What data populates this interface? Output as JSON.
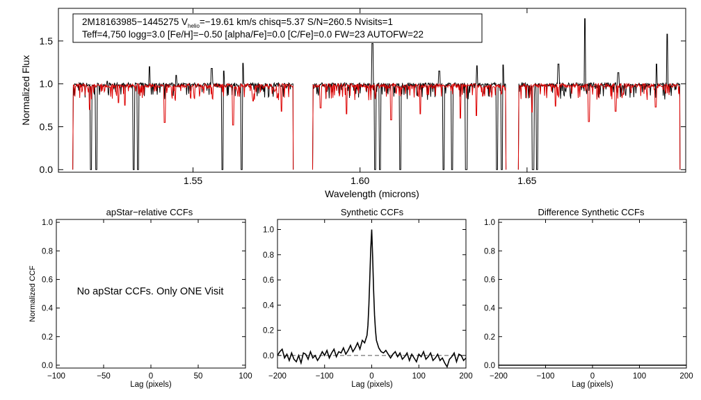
{
  "chart_data": [
    {
      "type": "line",
      "panel": "spectrum",
      "xlabel": "Wavelength (microns)",
      "ylabel": "Normalized Flux",
      "xlim": [
        1.5097,
        1.6975
      ],
      "ylim": [
        -0.03,
        1.88
      ],
      "xticks": [
        1.55,
        1.6,
        1.65
      ],
      "xtick_labels": [
        "1.55",
        "1.60",
        "1.65"
      ],
      "yticks": [
        0.0,
        0.5,
        1.0,
        1.5
      ],
      "ytick_labels": [
        "0.0",
        "0.5",
        "1.0",
        "1.5"
      ],
      "info_box": {
        "line1": "2M18163985−1445275  V",
        "line1_sub": "helio",
        "line1_rest": "=−19.61 km/s  chisq=5.37  S/N=260.5  Nvisits=1",
        "line2": "Teff=4,750 logg=3.0 [Fe/H]=−0.50 [alpha/Fe]=0.0 [C/Fe]=0.0 FW=23 AUTOFW=22"
      },
      "series": [
        {
          "color": "#000000",
          "continuum": 0.99,
          "chips": [
            [
              1.514,
              1.58
            ],
            [
              1.5858,
              1.6437
            ],
            [
              1.6474,
              1.6958
            ]
          ],
          "emission": [
            [
              1.5243,
              1.03
            ],
            [
              1.537,
              1.2
            ],
            [
              1.545,
              1.1
            ],
            [
              1.5556,
              1.18
            ],
            [
              1.5592,
              1.15
            ],
            [
              1.565,
              1.24
            ],
            [
              1.6037,
              1.47
            ],
            [
              1.6237,
              1.15
            ],
            [
              1.635,
              1.21
            ],
            [
              1.6428,
              1.22
            ],
            [
              1.6594,
              1.23
            ],
            [
              1.6673,
              1.76
            ],
            [
              1.6773,
              1.13
            ],
            [
              1.6888,
              1.23
            ],
            [
              1.692,
              1.58
            ]
          ],
          "deep_lines": [
            [
              1.5195,
              0.0
            ],
            [
              1.521,
              0.0
            ],
            [
              1.5323,
              0.0
            ],
            [
              1.5335,
              0.0
            ],
            [
              1.5588,
              0.0
            ],
            [
              1.5645,
              0.0
            ],
            [
              1.6045,
              0.0
            ],
            [
              1.606,
              0.0
            ],
            [
              1.612,
              0.0
            ],
            [
              1.625,
              0.0
            ],
            [
              1.6275,
              0.0
            ],
            [
              1.6318,
              0.0
            ],
            [
              1.641,
              0.0
            ],
            [
              1.6425,
              0.0
            ],
            [
              1.6518,
              0.0
            ],
            [
              1.653,
              0.0
            ]
          ]
        },
        {
          "color": "#dd0000",
          "continuum": 0.98,
          "chips": [
            [
              1.514,
              1.58
            ],
            [
              1.5858,
              1.6437
            ],
            [
              1.6474,
              1.6958
            ]
          ],
          "absorption": [
            [
              1.519,
              0.7
            ],
            [
              1.5277,
              0.78
            ],
            [
              1.5296,
              0.75
            ],
            [
              1.5415,
              0.55
            ],
            [
              1.562,
              0.52
            ],
            [
              1.568,
              0.8
            ],
            [
              1.5765,
              0.68
            ],
            [
              1.5882,
              0.72
            ],
            [
              1.596,
              0.65
            ],
            [
              1.6093,
              0.58
            ],
            [
              1.618,
              0.65
            ],
            [
              1.63,
              0.6
            ],
            [
              1.6348,
              0.63
            ],
            [
              1.6515,
              0.67
            ],
            [
              1.6585,
              0.74
            ],
            [
              1.6685,
              0.56
            ],
            [
              1.6765,
              0.68
            ],
            [
              1.6885,
              0.73
            ]
          ]
        }
      ]
    },
    {
      "type": "line",
      "panel": "apstar-ccf",
      "title": "apStar−relative CCFs",
      "xlabel": "Lag (pixels)",
      "ylabel": "Normalized CCF",
      "xlim": [
        -100,
        100
      ],
      "ylim": [
        -0.02,
        1.02
      ],
      "xticks": [
        -100,
        -50,
        0,
        50,
        100
      ],
      "xtick_labels": [
        "−100",
        "−50",
        "0",
        "50",
        "100"
      ],
      "yticks": [
        0.0,
        0.2,
        0.4,
        0.6,
        0.8,
        1.0
      ],
      "ytick_labels": [
        "0.0",
        "0.2",
        "0.4",
        "0.6",
        "0.8",
        "1.0"
      ],
      "annotation": "No apStar CCFs.  Only ONE Visit",
      "series": []
    },
    {
      "type": "line",
      "panel": "synthetic-ccf",
      "title": "Synthetic CCFs",
      "xlabel": "Lag (pixels)",
      "xlim": [
        -200,
        200
      ],
      "ylim": [
        -0.1,
        1.08
      ],
      "xticks": [
        -200,
        -100,
        0,
        100,
        200
      ],
      "xtick_labels": [
        "−200",
        "−100",
        "0",
        "100",
        "200"
      ],
      "yticks": [
        0.0,
        0.2,
        0.4,
        0.6,
        0.8,
        1.0
      ],
      "ytick_labels": [
        "0.0",
        "0.2",
        "0.4",
        "0.6",
        "0.8",
        "1.0"
      ],
      "zero_line": 0.0,
      "series": [
        {
          "color": "#000000",
          "x": [
            -200,
            -195,
            -190,
            -185,
            -180,
            -175,
            -170,
            -165,
            -160,
            -155,
            -150,
            -145,
            -140,
            -135,
            -130,
            -125,
            -120,
            -115,
            -110,
            -105,
            -100,
            -95,
            -90,
            -85,
            -80,
            -75,
            -70,
            -65,
            -60,
            -55,
            -50,
            -45,
            -40,
            -35,
            -30,
            -25,
            -20,
            -15,
            -10,
            -8,
            -6,
            -4,
            -2,
            0,
            2,
            4,
            6,
            8,
            10,
            15,
            20,
            25,
            30,
            35,
            40,
            45,
            50,
            55,
            60,
            65,
            70,
            75,
            80,
            85,
            90,
            95,
            100,
            105,
            110,
            115,
            120,
            125,
            130,
            135,
            140,
            145,
            150,
            155,
            160,
            165,
            170,
            175,
            180,
            185,
            190,
            195,
            200
          ],
          "y": [
            0.0,
            0.03,
            0.05,
            -0.02,
            0.01,
            -0.04,
            0.02,
            -0.03,
            -0.05,
            0.0,
            -0.06,
            0.02,
            0.01,
            -0.03,
            0.03,
            -0.02,
            0.0,
            -0.04,
            -0.01,
            0.03,
            0.0,
            0.04,
            -0.02,
            0.02,
            0.05,
            -0.01,
            0.03,
            0.02,
            0.06,
            0.01,
            0.04,
            0.08,
            0.03,
            0.06,
            0.1,
            0.05,
            0.12,
            0.1,
            0.16,
            0.24,
            0.4,
            0.62,
            0.85,
            1.0,
            0.78,
            0.52,
            0.32,
            0.2,
            0.12,
            0.06,
            0.03,
            0.02,
            0.04,
            0.01,
            -0.02,
            0.01,
            0.03,
            -0.01,
            0.02,
            -0.03,
            -0.01,
            0.02,
            -0.04,
            0.01,
            -0.02,
            -0.05,
            0.01,
            -0.01,
            0.03,
            -0.03,
            -0.01,
            0.02,
            -0.04,
            -0.02,
            0.01,
            -0.04,
            -0.02,
            -0.06,
            -0.09,
            -0.03,
            -0.01,
            0.02,
            -0.05,
            0.01,
            0.0,
            -0.04,
            -0.02
          ]
        }
      ]
    },
    {
      "type": "line",
      "panel": "difference-ccf",
      "title": "Difference Synthetic CCFs",
      "xlabel": "Lag (pixels)",
      "xlim": [
        -200,
        200
      ],
      "ylim": [
        -0.02,
        1.02
      ],
      "xticks": [
        -200,
        -100,
        0,
        100,
        200
      ],
      "xtick_labels": [
        "−200",
        "−100",
        "0",
        "100",
        "200"
      ],
      "yticks": [
        0.0,
        0.2,
        0.4,
        0.6,
        0.8,
        1.0
      ],
      "ytick_labels": [
        "0.0",
        "0.2",
        "0.4",
        "0.6",
        "0.8",
        "1.0"
      ],
      "series": [
        {
          "color": "#000000",
          "x": [
            -200,
            200
          ],
          "y": [
            0.0,
            0.0
          ]
        }
      ]
    }
  ]
}
